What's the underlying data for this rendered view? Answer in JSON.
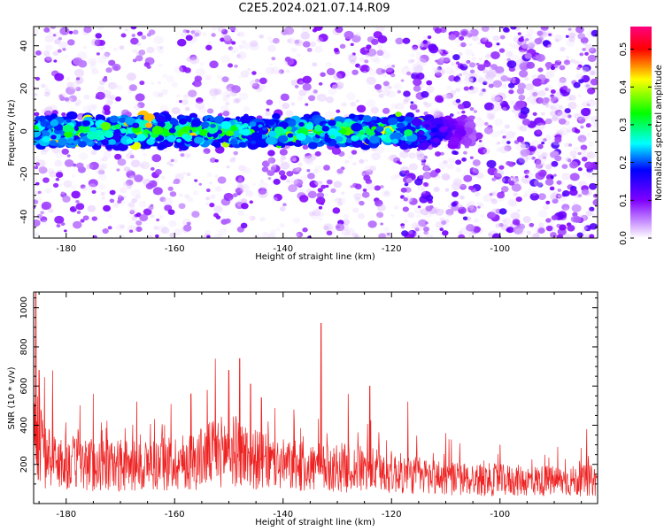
{
  "title": "C2E5.2024.021.07.14.R09",
  "chart_data": [
    {
      "type": "heatmap",
      "title": "C2E5.2024.021.07.14.R09",
      "xlabel": "Height of straight line (km)",
      "ylabel": "Frequency (Hz)",
      "xlim": [
        -186,
        -82
      ],
      "ylim": [
        -50,
        49
      ],
      "xticks": [
        -180,
        -160,
        -140,
        -120,
        -100
      ],
      "yticks": [
        -40,
        -20,
        0,
        20,
        40
      ],
      "colorbar": {
        "label": "Normalized spectral amplitude",
        "range": [
          0,
          0.56
        ],
        "ticks": [
          0.0,
          0.1,
          0.2,
          0.3,
          0.4,
          0.5
        ],
        "colormap": [
          "#ffffff",
          "#8000ff",
          "#0000ff",
          "#00ffff",
          "#00ff00",
          "#ffff00",
          "#ff0000",
          "#ff0080"
        ]
      },
      "signal_band": {
        "center_hz": 0,
        "half_width_hz": 8,
        "strong_from_km": -186,
        "strong_to_km": -118,
        "fades_to_km": -105,
        "peak_amplitude": 0.45
      },
      "background": {
        "description_levels": [
          0.02,
          0.12
        ],
        "denser_above_km": -118
      }
    },
    {
      "type": "line",
      "xlabel": "Height of straight line (km)",
      "ylabel": "SNR (10 * v/v)",
      "xlim": [
        -186,
        -82
      ],
      "ylim": [
        0,
        1080
      ],
      "xticks": [
        -180,
        -160,
        -140,
        -120,
        -100
      ],
      "yticks": [
        200,
        400,
        600,
        800,
        1000
      ],
      "color": "#ee2222",
      "series": [
        {
          "x": [
            -186,
            -185.5,
            -185,
            -184,
            -182,
            -180,
            -178,
            -176,
            -174,
            -172,
            -170,
            -168,
            -166,
            -164,
            -162,
            -160,
            -158,
            -156,
            -154,
            -152,
            -150,
            -148,
            -146,
            -144,
            -142,
            -140,
            -138,
            -136,
            -134,
            -133,
            -132,
            -130,
            -128,
            -126,
            -124,
            -122,
            -120,
            -118,
            -116,
            -114,
            -112,
            -110,
            -108,
            -106,
            -104,
            -102,
            -100,
            -98,
            -96,
            -94,
            -92,
            -90,
            -88,
            -86,
            -84,
            -82
          ],
          "baseline": [
            220,
            300,
            340,
            260,
            220,
            215,
            210,
            205,
            200,
            200,
            195,
            195,
            200,
            205,
            210,
            215,
            220,
            230,
            250,
            270,
            280,
            270,
            240,
            220,
            210,
            200,
            195,
            190,
            190,
            185,
            185,
            190,
            185,
            180,
            175,
            170,
            165,
            155,
            150,
            145,
            140,
            135,
            130,
            128,
            125,
            125,
            122,
            122,
            120,
            120,
            120,
            118,
            118,
            118,
            120,
            120
          ],
          "peaks": [
            {
              "x": -185.6,
              "y": 1080
            },
            {
              "x": -185.0,
              "y": 680
            },
            {
              "x": -182.5,
              "y": 680
            },
            {
              "x": -175.0,
              "y": 560
            },
            {
              "x": -167.0,
              "y": 520
            },
            {
              "x": -157.0,
              "y": 560
            },
            {
              "x": -154.0,
              "y": 580
            },
            {
              "x": -152.5,
              "y": 740
            },
            {
              "x": -150.0,
              "y": 680
            },
            {
              "x": -148.0,
              "y": 740
            },
            {
              "x": -146.0,
              "y": 610
            },
            {
              "x": -144.0,
              "y": 540
            },
            {
              "x": -138.0,
              "y": 480
            },
            {
              "x": -133.0,
              "y": 920
            },
            {
              "x": -128.0,
              "y": 560
            },
            {
              "x": -124.0,
              "y": 600
            },
            {
              "x": -117.0,
              "y": 520
            },
            {
              "x": -110.0,
              "y": 360
            },
            {
              "x": -100.0,
              "y": 300
            },
            {
              "x": -84.0,
              "y": 380
            }
          ]
        }
      ]
    }
  ]
}
